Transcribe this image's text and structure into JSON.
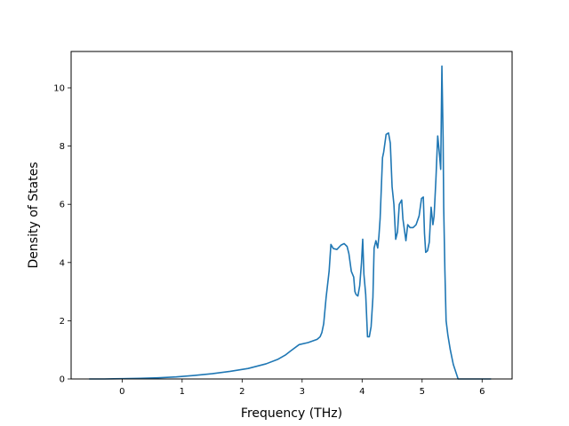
{
  "chart_data": {
    "type": "line",
    "title": "",
    "xlabel": "Frequency (THz)",
    "ylabel": "Density of States",
    "xlim": [
      -0.85,
      6.5
    ],
    "ylim": [
      0,
      11.25
    ],
    "xticks": [
      0,
      1,
      2,
      3,
      4,
      5,
      6
    ],
    "yticks": [
      0,
      2,
      4,
      6,
      8,
      10
    ],
    "grid": false,
    "legend": "none",
    "series": [
      {
        "color": "#1f77b4",
        "x": [
          -0.55,
          -0.3,
          0.0,
          0.3,
          0.6,
          0.9,
          1.2,
          1.5,
          1.8,
          2.1,
          2.4,
          2.6,
          2.72,
          2.8,
          2.95,
          3.1,
          3.25,
          3.3,
          3.33,
          3.36,
          3.4,
          3.45,
          3.48,
          3.52,
          3.58,
          3.65,
          3.7,
          3.75,
          3.78,
          3.82,
          3.86,
          3.88,
          3.9,
          3.93,
          3.96,
          3.99,
          4.01,
          4.03,
          4.06,
          4.09,
          4.12,
          4.15,
          4.18,
          4.2,
          4.23,
          4.26,
          4.28,
          4.3,
          4.34,
          4.36,
          4.4,
          4.44,
          4.47,
          4.5,
          4.53,
          4.56,
          4.59,
          4.62,
          4.66,
          4.68,
          4.7,
          4.73,
          4.76,
          4.8,
          4.85,
          4.9,
          4.95,
          4.99,
          5.02,
          5.04,
          5.06,
          5.09,
          5.12,
          5.15,
          5.18,
          5.2,
          5.23,
          5.26,
          5.29,
          5.31,
          5.33,
          5.35,
          5.36,
          5.38,
          5.4,
          5.43,
          5.47,
          5.52,
          5.6,
          5.7,
          5.9,
          6.15
        ],
        "y": [
          0.0,
          0.0,
          0.01,
          0.02,
          0.04,
          0.07,
          0.12,
          0.18,
          0.26,
          0.36,
          0.52,
          0.68,
          0.82,
          0.95,
          1.18,
          1.25,
          1.36,
          1.45,
          1.6,
          1.9,
          2.8,
          3.7,
          4.62,
          4.48,
          4.45,
          4.6,
          4.65,
          4.55,
          4.3,
          3.7,
          3.5,
          3.0,
          2.9,
          2.85,
          3.2,
          4.0,
          4.8,
          3.6,
          2.9,
          1.45,
          1.45,
          1.8,
          2.8,
          4.5,
          4.75,
          4.5,
          4.9,
          5.5,
          7.6,
          7.8,
          8.4,
          8.45,
          8.1,
          6.6,
          6.0,
          4.8,
          5.05,
          6.0,
          6.15,
          5.5,
          5.2,
          4.75,
          5.3,
          5.2,
          5.2,
          5.3,
          5.6,
          6.2,
          6.25,
          5.0,
          4.35,
          4.4,
          4.7,
          5.9,
          5.3,
          5.6,
          6.85,
          8.35,
          7.7,
          7.2,
          10.75,
          8.3,
          5.9,
          3.7,
          2.0,
          1.5,
          1.0,
          0.5,
          0.0,
          0.0,
          0.0,
          0.0
        ]
      }
    ]
  }
}
